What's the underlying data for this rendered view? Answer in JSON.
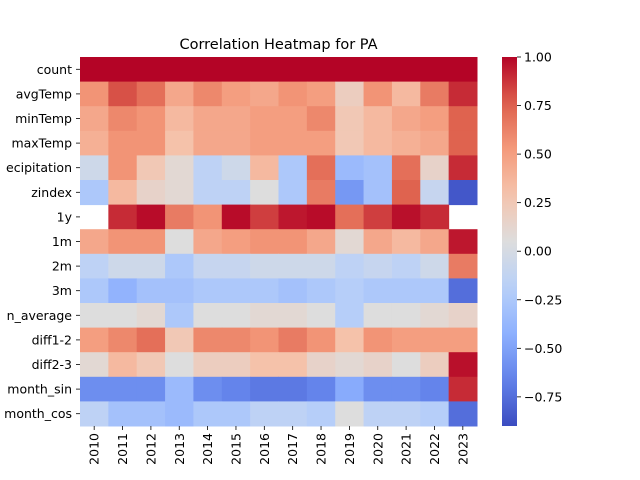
{
  "chart_data": {
    "type": "heatmap",
    "title": "Correlation Heatmap for PA",
    "xlabel": "",
    "ylabel": "",
    "x": [
      "2010",
      "2011",
      "2012",
      "2013",
      "2014",
      "2015",
      "2016",
      "2017",
      "2018",
      "2019",
      "2020",
      "2021",
      "2022",
      "2023"
    ],
    "y": [
      "count",
      "avgTemp",
      "minTemp",
      "maxTemp",
      "ecipitation",
      "zindex",
      "1y",
      "1m",
      "2m",
      "3m",
      "n_average",
      "diff1-2",
      "diff2-3",
      "month_sin",
      "month_cos"
    ],
    "values": [
      [
        1.0,
        1.0,
        1.0,
        1.0,
        1.0,
        1.0,
        1.0,
        1.0,
        1.0,
        1.0,
        1.0,
        1.0,
        1.0,
        1.0
      ],
      [
        0.55,
        0.8,
        0.7,
        0.45,
        0.6,
        0.5,
        0.45,
        0.55,
        0.5,
        0.2,
        0.55,
        0.35,
        0.65,
        0.9
      ],
      [
        0.45,
        0.6,
        0.55,
        0.35,
        0.45,
        0.45,
        0.5,
        0.5,
        0.6,
        0.25,
        0.35,
        0.45,
        0.5,
        0.75
      ],
      [
        0.4,
        0.55,
        0.55,
        0.3,
        0.45,
        0.45,
        0.5,
        0.5,
        0.5,
        0.25,
        0.35,
        0.4,
        0.45,
        0.75
      ],
      [
        -0.05,
        0.55,
        0.25,
        0.1,
        -0.15,
        -0.05,
        0.35,
        -0.25,
        0.7,
        -0.35,
        -0.3,
        0.7,
        0.15,
        0.9
      ],
      [
        -0.25,
        0.35,
        0.15,
        0.1,
        -0.15,
        -0.15,
        0.05,
        -0.25,
        0.65,
        -0.55,
        -0.3,
        0.75,
        -0.1,
        -0.85
      ],
      [
        null,
        0.9,
        0.98,
        0.65,
        0.55,
        0.98,
        0.85,
        0.95,
        0.98,
        0.7,
        0.85,
        0.97,
        0.9,
        null
      ],
      [
        0.45,
        0.55,
        0.55,
        0.05,
        0.45,
        0.5,
        0.55,
        0.55,
        0.45,
        0.1,
        0.45,
        0.35,
        0.45,
        0.95
      ],
      [
        -0.15,
        -0.05,
        -0.05,
        -0.25,
        -0.1,
        -0.1,
        -0.05,
        -0.05,
        -0.05,
        -0.15,
        -0.1,
        -0.15,
        -0.05,
        0.65
      ],
      [
        -0.25,
        -0.4,
        -0.3,
        -0.3,
        -0.25,
        -0.25,
        -0.25,
        -0.3,
        -0.25,
        -0.2,
        -0.25,
        -0.25,
        -0.25,
        -0.75
      ],
      [
        0.05,
        0.05,
        0.1,
        -0.25,
        0.05,
        0.05,
        0.1,
        0.1,
        0.05,
        -0.2,
        0.05,
        0.05,
        0.1,
        0.15
      ],
      [
        0.5,
        0.6,
        0.7,
        0.25,
        0.6,
        0.6,
        0.55,
        0.65,
        0.55,
        0.3,
        0.55,
        0.5,
        0.5,
        0.5
      ],
      [
        0.1,
        0.35,
        0.25,
        0.05,
        0.2,
        0.2,
        0.3,
        0.3,
        0.15,
        0.1,
        0.15,
        0.05,
        0.2,
        0.97
      ],
      [
        -0.6,
        -0.6,
        -0.6,
        -0.35,
        -0.6,
        -0.65,
        -0.7,
        -0.7,
        -0.65,
        -0.45,
        -0.6,
        -0.6,
        -0.65,
        0.9
      ],
      [
        -0.15,
        -0.3,
        -0.3,
        -0.35,
        -0.25,
        -0.25,
        -0.15,
        -0.15,
        -0.2,
        0.05,
        -0.15,
        -0.15,
        -0.2,
        -0.75
      ]
    ],
    "colormap": "coolwarm",
    "vmin": -0.9,
    "vmax": 1.0,
    "colorbar_ticks": [
      1.0,
      0.75,
      0.5,
      0.25,
      0.0,
      -0.25,
      -0.5,
      -0.75
    ],
    "colorbar_tick_labels": [
      "1.00",
      "0.75",
      "0.50",
      "0.25",
      "0.00",
      "−0.25",
      "−0.50",
      "−0.75"
    ]
  }
}
